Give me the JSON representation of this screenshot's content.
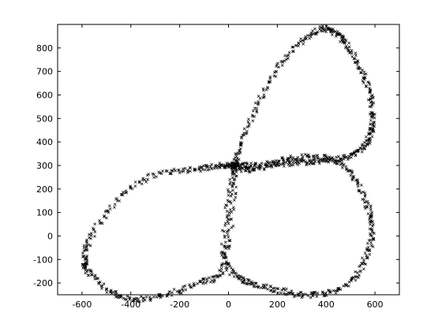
{
  "chart_data": {
    "type": "scatter",
    "title": "",
    "xlabel": "",
    "ylabel": "",
    "xlim": [
      -700,
      700
    ],
    "ylim": [
      -250,
      900
    ],
    "grid": false,
    "legend": "none",
    "marker": "x",
    "marker_color": "#000000",
    "x_ticks": [
      -600,
      -400,
      -200,
      0,
      200,
      400,
      600
    ],
    "y_ticks": [
      -200,
      -100,
      0,
      100,
      200,
      300,
      400,
      500,
      600,
      700,
      800
    ],
    "x_tick_labels": [
      "-600",
      "-400",
      "-200",
      "0",
      "200",
      "400",
      "600"
    ],
    "y_tick_labels": [
      "-200",
      "-100",
      "0",
      "100",
      "200",
      "300",
      "400",
      "500",
      "600",
      "700",
      "800"
    ],
    "series": [
      {
        "x": [
          25,
          50,
          120,
          200,
          300,
          380,
          430,
          480,
          530,
          575,
          590,
          580,
          540,
          470,
          380,
          300,
          200,
          100,
          25
        ],
        "y": [
          300,
          390,
          560,
          710,
          830,
          880,
          870,
          820,
          730,
          620,
          510,
          430,
          370,
          330,
          320,
          310,
          305,
          300,
          300
        ]
      },
      {
        "x": [
          25,
          0,
          -60,
          -160,
          -300,
          -450,
          -560,
          -590,
          -570,
          -480,
          -380,
          -250,
          -120,
          -30,
          10,
          25
        ],
        "y": [
          300,
          300,
          295,
          280,
          260,
          160,
          0,
          -100,
          -160,
          -240,
          -270,
          -250,
          -200,
          -150,
          50,
          300
        ]
      },
      {
        "x": [
          25,
          100,
          200,
          300,
          420,
          500,
          560,
          590,
          575,
          520,
          420,
          300,
          200,
          100,
          30,
          -20,
          0,
          25
        ],
        "y": [
          300,
          280,
          320,
          335,
          330,
          270,
          150,
          50,
          -60,
          -170,
          -240,
          -250,
          -230,
          -200,
          -170,
          -80,
          150,
          300
        ]
      }
    ]
  }
}
